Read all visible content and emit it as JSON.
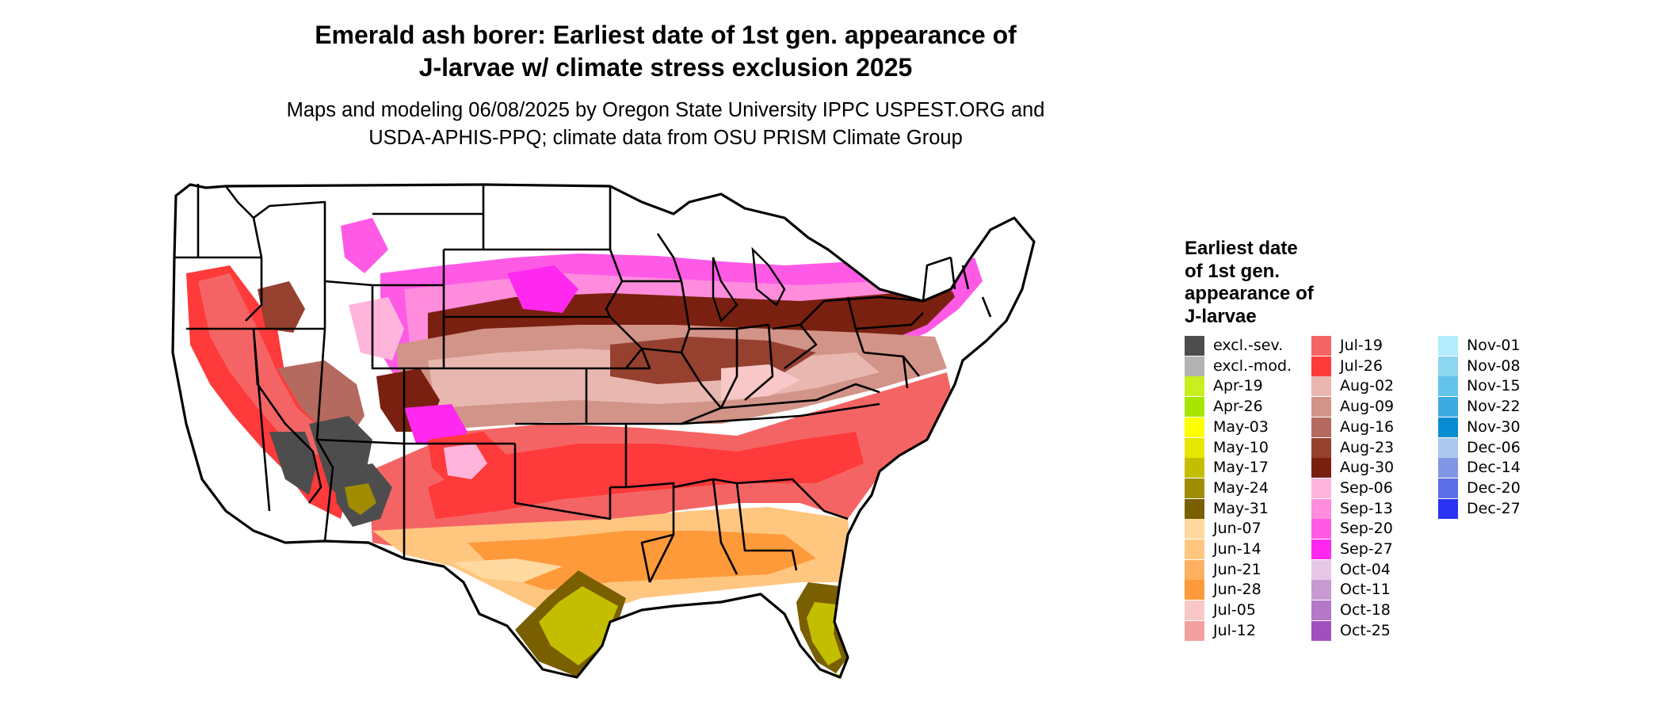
{
  "title": {
    "line1": "Emerald ash borer: Earliest date of 1st gen. appearance of",
    "line2": "J-larvae w/ climate stress exclusion 2025"
  },
  "subtitle": {
    "line1": "Maps and modeling 06/08/2025 by Oregon State University IPPC USPEST.ORG and",
    "line2": "USDA-APHIS-PPQ; climate data from OSU PRISM Climate Group"
  },
  "legend": {
    "title_lines": [
      "Earliest date",
      "of 1st gen.",
      "appearance of",
      "J-larvae"
    ],
    "columns": [
      [
        {
          "label": "excl.-sev.",
          "color": "#4d4d4d"
        },
        {
          "label": "excl.-mod.",
          "color": "#b3b3b3"
        },
        {
          "label": "Apr-19",
          "color": "#c8f01e"
        },
        {
          "label": "Apr-26",
          "color": "#a6e600"
        },
        {
          "label": "May-03",
          "color": "#ffff00"
        },
        {
          "label": "May-10",
          "color": "#e6e600"
        },
        {
          "label": "May-17",
          "color": "#c4be00"
        },
        {
          "label": "May-24",
          "color": "#a08c00"
        },
        {
          "label": "May-31",
          "color": "#7a5f00"
        },
        {
          "label": "Jun-07",
          "color": "#ffd9a0"
        },
        {
          "label": "Jun-14",
          "color": "#ffc680"
        },
        {
          "label": "Jun-21",
          "color": "#ffb060"
        },
        {
          "label": "Jun-28",
          "color": "#ff9a3a"
        },
        {
          "label": "Jul-05",
          "color": "#f8c8c8"
        },
        {
          "label": "Jul-12",
          "color": "#f5a0a0"
        }
      ],
      [
        {
          "label": "Jul-19",
          "color": "#f56464"
        },
        {
          "label": "Jul-26",
          "color": "#ff3a3a"
        },
        {
          "label": "Aug-02",
          "color": "#e8b8b0"
        },
        {
          "label": "Aug-09",
          "color": "#d29488"
        },
        {
          "label": "Aug-16",
          "color": "#b46a5e"
        },
        {
          "label": "Aug-23",
          "color": "#964030"
        },
        {
          "label": "Aug-30",
          "color": "#7a2010"
        },
        {
          "label": "Sep-06",
          "color": "#ffb4dc"
        },
        {
          "label": "Sep-13",
          "color": "#ff8cdc"
        },
        {
          "label": "Sep-20",
          "color": "#ff5ae6"
        },
        {
          "label": "Sep-27",
          "color": "#ff28f0"
        },
        {
          "label": "Oct-04",
          "color": "#e6c8e6"
        },
        {
          "label": "Oct-11",
          "color": "#c89ad2"
        },
        {
          "label": "Oct-18",
          "color": "#b478c8"
        },
        {
          "label": "Oct-25",
          "color": "#a050be"
        }
      ],
      [
        {
          "label": "Nov-01",
          "color": "#b4ebff"
        },
        {
          "label": "Nov-08",
          "color": "#8cd7f0"
        },
        {
          "label": "Nov-15",
          "color": "#64c3eb"
        },
        {
          "label": "Nov-22",
          "color": "#3caae1"
        },
        {
          "label": "Nov-30",
          "color": "#0a8cd2"
        },
        {
          "label": "Dec-06",
          "color": "#aac8eb"
        },
        {
          "label": "Dec-14",
          "color": "#8296e6"
        },
        {
          "label": "Dec-20",
          "color": "#5a6ee6"
        },
        {
          "label": "Dec-27",
          "color": "#2832f0"
        }
      ]
    ]
  }
}
